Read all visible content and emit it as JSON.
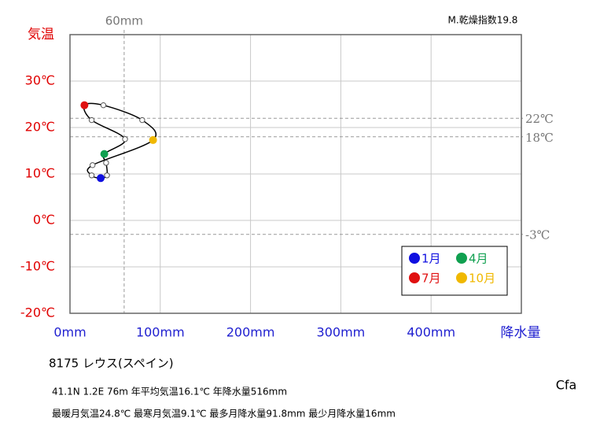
{
  "chart_data": {
    "type": "climograph",
    "title": "M.乾燥指数19.8",
    "y_label": "気温",
    "x_label": "降水量",
    "x": [
      34,
      41,
      40,
      38,
      61,
      24,
      16,
      37,
      80,
      92,
      25,
      24
    ],
    "values": [
      9.1,
      9.7,
      12.4,
      14.3,
      17.5,
      21.6,
      24.8,
      24.8,
      21.6,
      17.3,
      11.9,
      9.7
    ],
    "point_colors": [
      "#1010e0",
      "#ffffff",
      "#ffffff",
      "#10a050",
      "#ffffff",
      "#ffffff",
      "#e01010",
      "#ffffff",
      "#ffffff",
      "#f0b800",
      "#ffffff",
      "#ffffff"
    ],
    "line_color": "#000000",
    "xlim": [
      0,
      500
    ],
    "ylim": [
      -20,
      40
    ],
    "xticks": [
      {
        "value": 0,
        "label": "0mm"
      },
      {
        "value": 100,
        "label": "100mm"
      },
      {
        "value": 200,
        "label": "200mm"
      },
      {
        "value": 300,
        "label": "300mm"
      },
      {
        "value": 400,
        "label": "400mm"
      }
    ],
    "yticks": [
      {
        "value": -20,
        "label": "-20℃"
      },
      {
        "value": -10,
        "label": "-10℃"
      },
      {
        "value": 0,
        "label": "0℃"
      },
      {
        "value": 10,
        "label": "10℃"
      },
      {
        "value": 20,
        "label": "20℃"
      },
      {
        "value": 30,
        "label": "30℃"
      }
    ],
    "grid": true,
    "ref_lines": [
      {
        "axis": "y",
        "value": 22,
        "label": "22℃"
      },
      {
        "axis": "y",
        "value": 18,
        "label": "18℃"
      },
      {
        "axis": "y",
        "value": -3,
        "label": "-3℃"
      },
      {
        "axis": "x",
        "value": 60,
        "label": "60mm"
      }
    ],
    "legend_loc": "lower right",
    "legend": [
      {
        "label": "1月",
        "color": "#1010e0"
      },
      {
        "label": "4月",
        "color": "#10a050"
      },
      {
        "label": "7月",
        "color": "#e01010"
      },
      {
        "label": "10月",
        "color": "#f0b800"
      }
    ],
    "station": "8175  レウス(スペイン)",
    "info_line1": "41.1N  1.2E 76m  年平均気温16.1℃ 年降水量516mm",
    "info_line2": "最暖月気温24.8℃ 最寒月気温9.1℃ 最多月降水量91.8mm 最少月降水量16mm",
    "climate_class": "Cfa"
  }
}
